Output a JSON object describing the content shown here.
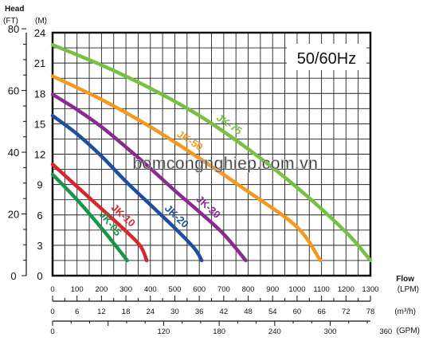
{
  "chart_data": {
    "type": "line",
    "frequency_label": "50/60Hz",
    "watermark": "bomcongnghiep.com.vn",
    "y_axis": {
      "head_title": "Head",
      "ft_unit": "(FT)",
      "m_unit": "(M)",
      "m_ticks": [
        0,
        3,
        6,
        9,
        12,
        15,
        18,
        21,
        24
      ],
      "ft_ticks": [
        0,
        20,
        40,
        60,
        80
      ],
      "m_range": [
        0,
        24
      ]
    },
    "x_axis": {
      "flow_title": "Flow",
      "lpm_unit": "(LPM)",
      "m3h_unit": "(m³/h)",
      "gpm_unit": "(GPM)",
      "lpm_ticks": [
        0,
        100,
        200,
        300,
        400,
        500,
        600,
        700,
        800,
        900,
        1000,
        1100,
        1200,
        1300
      ],
      "m3h_ticks": [
        0,
        6,
        12,
        18,
        24,
        30,
        36,
        42,
        48,
        54,
        60,
        66,
        72,
        78
      ],
      "gpm_ticks": [
        0,
        120,
        180,
        240,
        300,
        360
      ],
      "lpm_range": [
        0,
        1300
      ]
    },
    "series": [
      {
        "name": "JK-05",
        "color": "#1a9448",
        "points": [
          [
            0,
            10.0
          ],
          [
            100,
            7.5
          ],
          [
            200,
            4.7
          ],
          [
            260,
            2.9
          ],
          [
            305,
            1.5
          ]
        ]
      },
      {
        "name": "JK-10",
        "color": "#d9252e",
        "points": [
          [
            0,
            11.0
          ],
          [
            100,
            8.8
          ],
          [
            200,
            6.6
          ],
          [
            300,
            4.4
          ],
          [
            360,
            2.9
          ],
          [
            385,
            1.5
          ]
        ]
      },
      {
        "name": "JK-20",
        "color": "#1d4f9e",
        "points": [
          [
            0,
            15.8
          ],
          [
            100,
            14.0
          ],
          [
            200,
            11.8
          ],
          [
            300,
            9.3
          ],
          [
            400,
            7.0
          ],
          [
            500,
            4.7
          ],
          [
            580,
            2.7
          ],
          [
            610,
            1.5
          ]
        ]
      },
      {
        "name": "JK-30",
        "color": "#8a2b8f",
        "points": [
          [
            0,
            17.9
          ],
          [
            100,
            16.4
          ],
          [
            200,
            14.7
          ],
          [
            300,
            12.7
          ],
          [
            400,
            10.6
          ],
          [
            500,
            8.4
          ],
          [
            600,
            6.3
          ],
          [
            700,
            4.1
          ],
          [
            790,
            1.5
          ]
        ]
      },
      {
        "name": "JK-50",
        "color": "#f39a1e",
        "points": [
          [
            0,
            19.7
          ],
          [
            200,
            17.4
          ],
          [
            400,
            14.7
          ],
          [
            600,
            11.6
          ],
          [
            800,
            8.3
          ],
          [
            1000,
            4.8
          ],
          [
            1095,
            1.5
          ]
        ]
      },
      {
        "name": "JK-75",
        "color": "#76c043",
        "points": [
          [
            0,
            22.8
          ],
          [
            200,
            20.8
          ],
          [
            400,
            18.5
          ],
          [
            600,
            15.8
          ],
          [
            800,
            12.5
          ],
          [
            1000,
            8.7
          ],
          [
            1200,
            4.3
          ],
          [
            1300,
            1.5
          ]
        ]
      }
    ]
  }
}
